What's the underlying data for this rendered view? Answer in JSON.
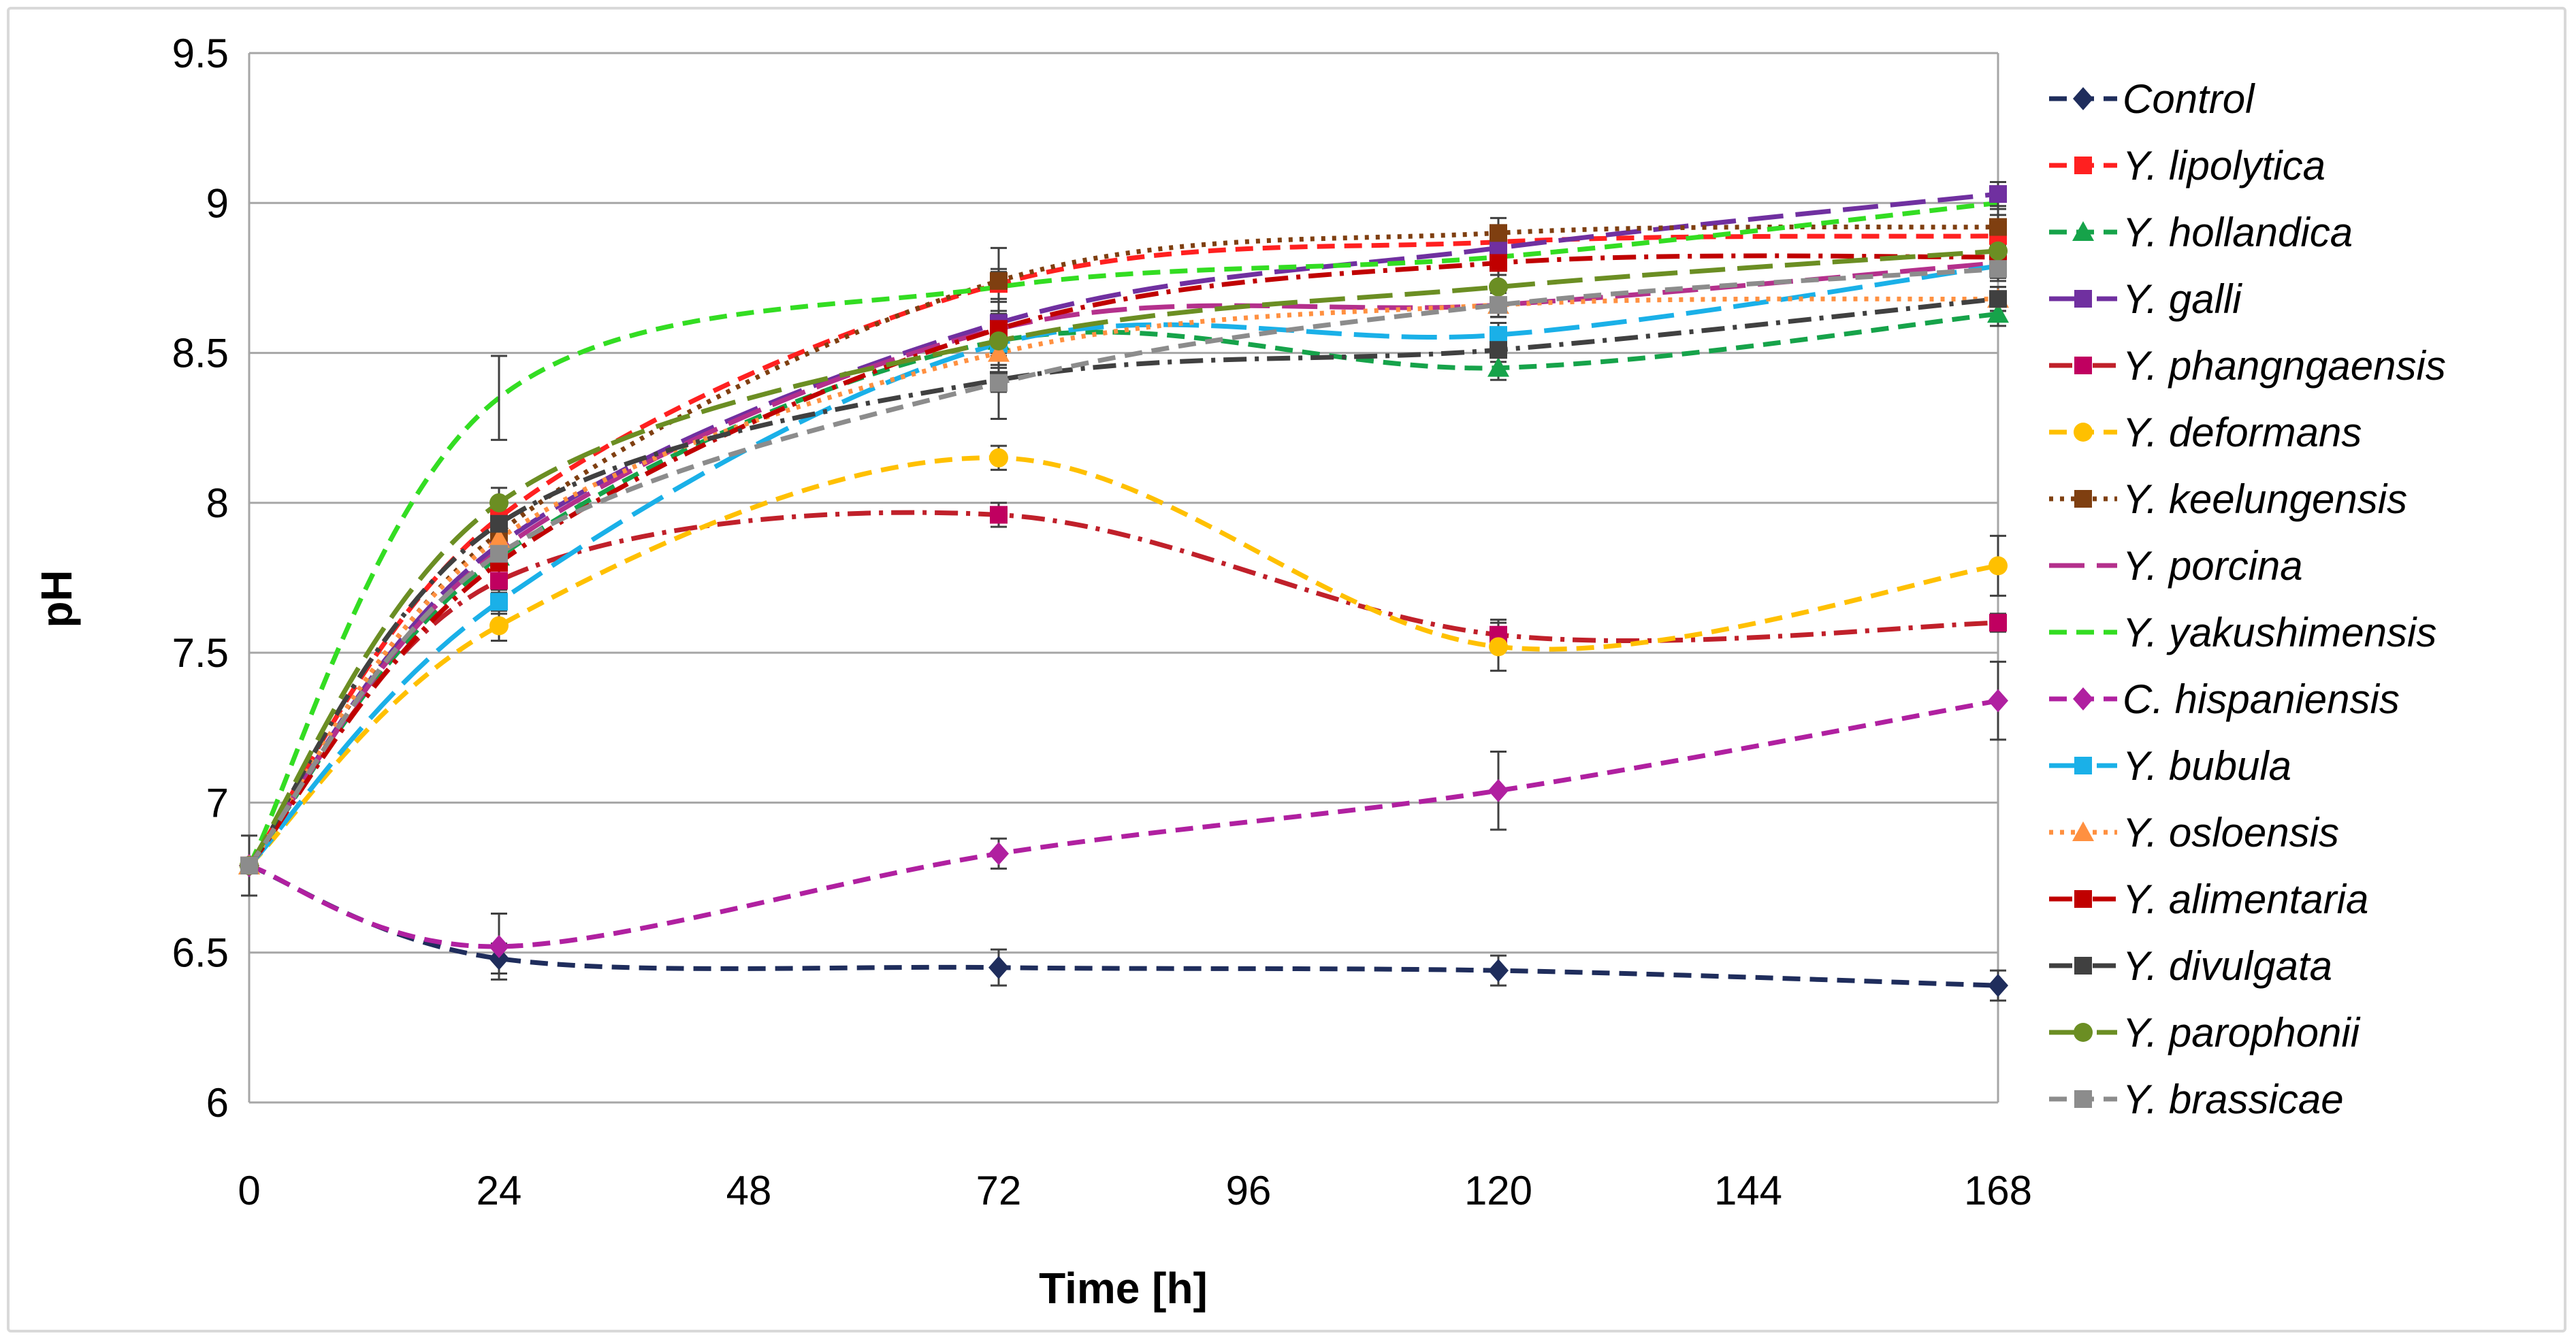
{
  "chart_data": {
    "type": "line",
    "title": "",
    "xlabel": "Time [h]",
    "ylabel": "pH",
    "x": [
      0,
      24,
      72,
      120,
      168
    ],
    "xlim": [
      0,
      168
    ],
    "ylim": [
      6,
      9.5
    ],
    "xticks": [
      0,
      24,
      48,
      72,
      96,
      120,
      144,
      168
    ],
    "yticks": [
      6,
      6.5,
      7,
      7.5,
      8,
      8.5,
      9,
      9.5
    ],
    "grid": "horizontal",
    "legend_position": "right",
    "series": [
      {
        "name": "Control",
        "values": [
          6.79,
          6.48,
          6.45,
          6.44,
          6.39
        ],
        "errors": [
          0.1,
          0.05,
          0.06,
          0.05,
          0.05
        ],
        "color": "#1f2d5c",
        "marker": "diamond",
        "dash": "dashed"
      },
      {
        "name": "Y. lipolytica",
        "values": [
          6.79,
          7.95,
          8.73,
          8.87,
          8.89
        ],
        "errors": [
          0,
          0.04,
          0.05,
          0.05,
          0.04
        ],
        "color": "#ff2020",
        "marker": "square",
        "dash": "dashed"
      },
      {
        "name": "Y. hollandica",
        "values": [
          6.79,
          7.82,
          8.54,
          8.45,
          8.63
        ],
        "errors": [
          0,
          0.04,
          0.04,
          0.04,
          0.04
        ],
        "color": "#16a34a",
        "marker": "triangle",
        "dash": "dashed"
      },
      {
        "name": "Y. galli",
        "values": [
          6.79,
          7.86,
          8.6,
          8.85,
          9.03
        ],
        "errors": [
          0,
          0.04,
          0.04,
          0.04,
          0.04
        ],
        "color": "#7030a0",
        "marker": "square",
        "dash": "longdash"
      },
      {
        "name": "Y. phangngaensis",
        "values": [
          6.79,
          7.74,
          7.96,
          7.56,
          7.6
        ],
        "errors": [
          0,
          0.04,
          0.04,
          0.05,
          0.03
        ],
        "color": "#c00060",
        "marker": "square",
        "dash": "dashdot",
        "line_color": "#c0202a"
      },
      {
        "name": "Y. deformans",
        "values": [
          6.79,
          7.59,
          8.15,
          7.52,
          7.79
        ],
        "errors": [
          0,
          0.05,
          0.04,
          0.08,
          0.1
        ],
        "color": "#ffc000",
        "marker": "circle",
        "dash": "dashed"
      },
      {
        "name": "Y. keelungensis",
        "values": [
          6.79,
          7.9,
          8.74,
          8.9,
          8.92
        ],
        "errors": [
          0,
          0.05,
          0.11,
          0.05,
          0.06
        ],
        "color": "#7f3f10",
        "marker": "square",
        "dash": "dotted"
      },
      {
        "name": "Y. porcina",
        "values": [
          6.79,
          7.84,
          8.58,
          8.66,
          8.8
        ],
        "errors": [
          0,
          0.04,
          0.04,
          0.04,
          0.04
        ],
        "color": "#b4308c",
        "marker": "none",
        "dash": "longdash"
      },
      {
        "name": "Y. yakushimensis",
        "values": [
          6.79,
          8.35,
          8.72,
          8.82,
          9.0
        ],
        "errors": [
          0,
          0.14,
          0.05,
          0.04,
          0.04
        ],
        "color": "#33dd22",
        "marker": "none",
        "dash": "dashed"
      },
      {
        "name": "C. hispaniensis",
        "values": [
          6.79,
          6.52,
          6.83,
          7.04,
          7.34
        ],
        "errors": [
          0,
          0.11,
          0.05,
          0.13,
          0.13
        ],
        "color": "#b020a0",
        "marker": "diamond",
        "dash": "dashed"
      },
      {
        "name": "Y. bubula",
        "values": [
          6.79,
          7.67,
          8.53,
          8.56,
          8.79
        ],
        "errors": [
          0,
          0.04,
          0.04,
          0.04,
          0.04
        ],
        "color": "#1ab0e8",
        "marker": "square",
        "dash": "longdash"
      },
      {
        "name": "Y. osloensis",
        "values": [
          6.79,
          7.88,
          8.5,
          8.66,
          8.68
        ],
        "errors": [
          0,
          0.04,
          0.04,
          0.04,
          0.04
        ],
        "color": "#ff9040",
        "marker": "triangle",
        "dash": "dotted"
      },
      {
        "name": "Y. alimentaria",
        "values": [
          6.79,
          7.8,
          8.58,
          8.8,
          8.82
        ],
        "errors": [
          0,
          0.04,
          0.04,
          0.04,
          0.04
        ],
        "color": "#c00000",
        "marker": "square",
        "dash": "dashdot"
      },
      {
        "name": "Y. divulgata",
        "values": [
          6.79,
          7.93,
          8.41,
          8.51,
          8.68
        ],
        "errors": [
          0,
          0.04,
          0.04,
          0.04,
          0.04
        ],
        "color": "#404040",
        "marker": "square",
        "dash": "dashdot"
      },
      {
        "name": "Y. parophonii",
        "values": [
          6.79,
          8.0,
          8.54,
          8.72,
          8.84
        ],
        "errors": [
          0,
          0.05,
          0.04,
          0.04,
          0.04
        ],
        "color": "#6b8e23",
        "marker": "circle",
        "dash": "longdash"
      },
      {
        "name": "Y. brassicae",
        "values": [
          6.79,
          7.83,
          8.4,
          8.66,
          8.78
        ],
        "errors": [
          0,
          0.04,
          0.12,
          0.04,
          0.04
        ],
        "color": "#8c8c8c",
        "marker": "square",
        "dash": "dashed"
      }
    ]
  }
}
